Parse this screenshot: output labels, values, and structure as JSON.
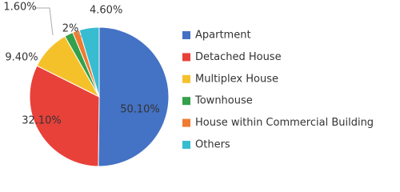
{
  "chart_data": {
    "type": "pie",
    "categories": [
      "Apartment",
      "Detached House",
      "Multiplex House",
      "Townhouse",
      "House within Commercial Building",
      "Others"
    ],
    "values": [
      50.1,
      32.1,
      9.4,
      2,
      1.6,
      4.6
    ],
    "value_labels": [
      "50.10%",
      "32.10%",
      "9.40%",
      "2%",
      "1.60%",
      "4.60%"
    ],
    "colors": [
      "#4472c4",
      "#e8413a",
      "#f5c12b",
      "#33a04a",
      "#f07b30",
      "#38bcd0"
    ],
    "legend": "right"
  }
}
